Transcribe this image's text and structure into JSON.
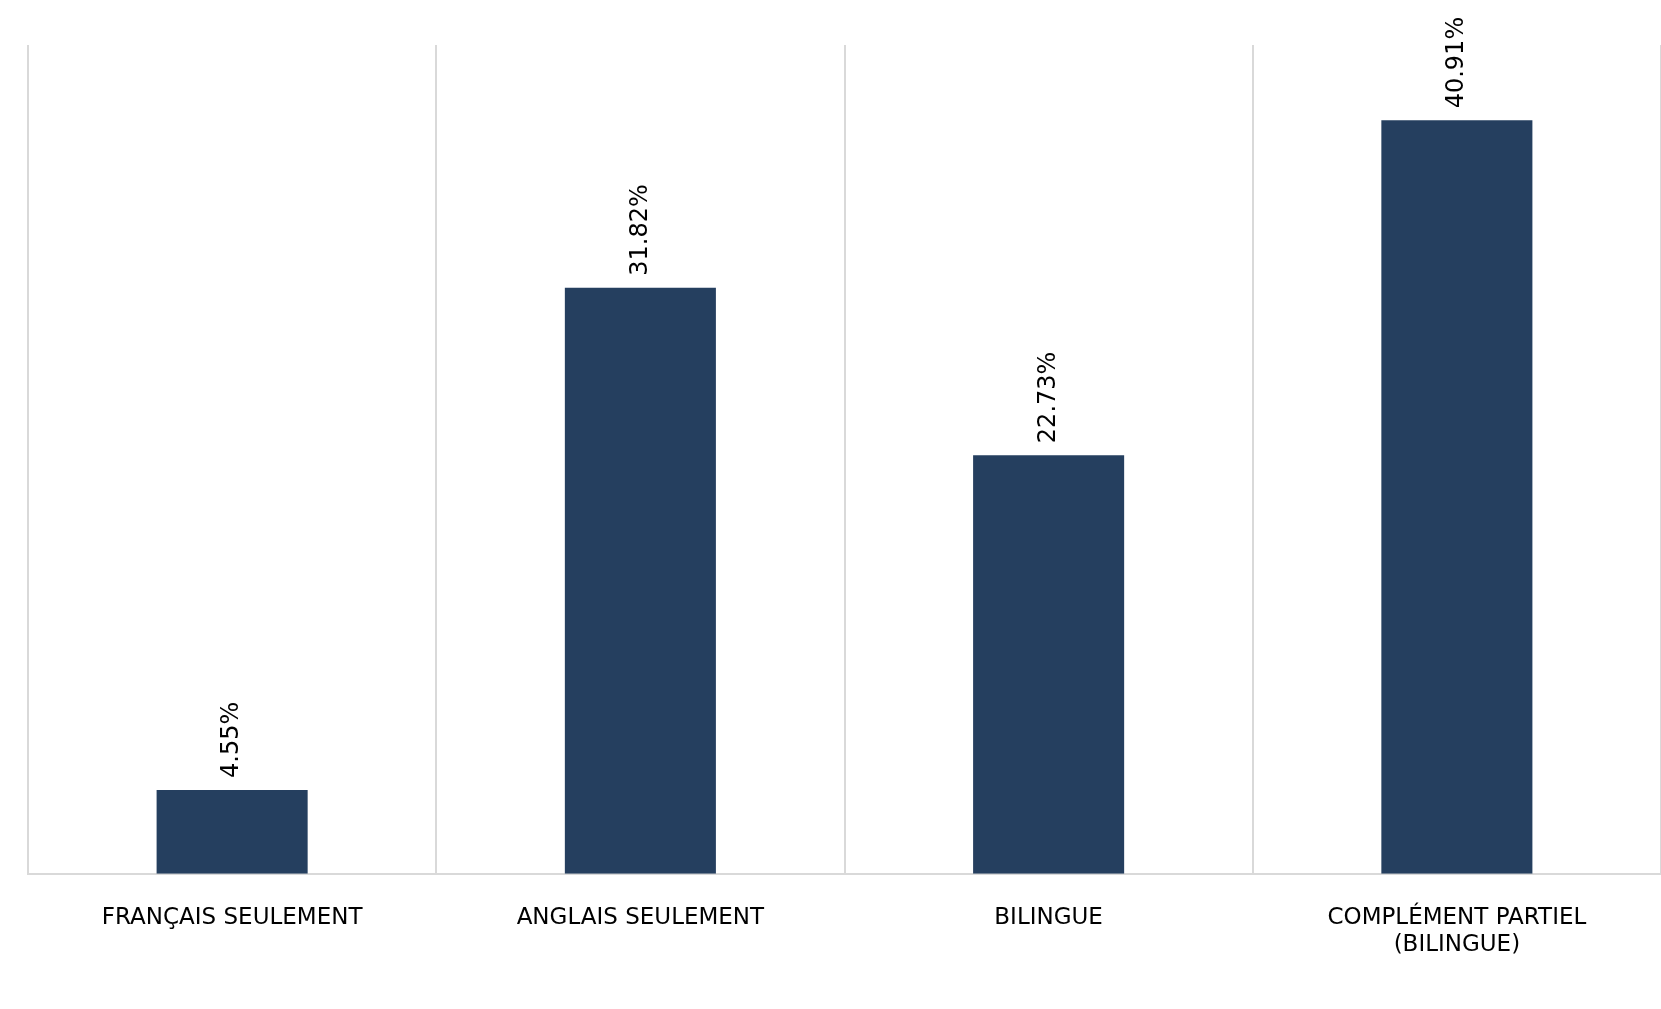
{
  "chart_data": {
    "type": "bar",
    "categories": [
      "FRANÇAIS SEULEMENT",
      "ANGLAIS SEULEMENT",
      "BILINGUE",
      "COMPLÉMENT PARTIEL (BILINGUE)"
    ],
    "values": [
      4.55,
      31.82,
      22.73,
      40.91
    ],
    "value_labels": [
      "4.55%",
      "31.82%",
      "22.73%",
      "40.91%"
    ],
    "color": "#253f5f",
    "relative": false,
    "grid": "x",
    "legend": false
  }
}
